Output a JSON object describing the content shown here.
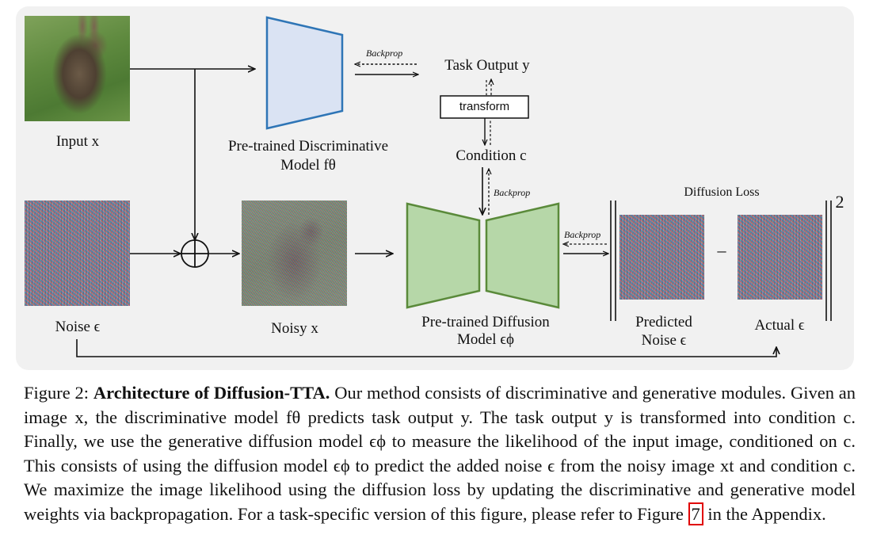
{
  "labels": {
    "input": "Input x",
    "noise": "Noise ϵ",
    "noisy": "Noisy x",
    "pretrained_disc_line1": "Pre-trained Discriminative",
    "pretrained_disc_line2": "Model fθ",
    "task_output": "Task Output y",
    "transform": "transform",
    "condition": "Condition c",
    "pretrained_diff_line1": "Pre-trained Diffusion",
    "pretrained_diff_line2": "Model ϵϕ",
    "diffusion_loss": "Diffusion Loss",
    "predicted_line1": "Predicted",
    "predicted_line2": "Noise ϵ",
    "actual": "Actual ϵ",
    "norm_exponent": "2",
    "minus": "–",
    "backprop_1": "Backprop",
    "backprop_2": "Backprop",
    "backprop_3": "Backprop"
  },
  "caption": {
    "figure_num": "Figure 2:",
    "title": "Architecture of Diffusion-TTA.",
    "body": " Our method consists of discriminative and generative modules. Given an image x, the discriminative model fθ predicts task output y. The task output y is transformed into condition c. Finally, we use the generative diffusion model ϵϕ to measure the likelihood of the input image, conditioned on c. This consists of using the diffusion model ϵϕ to predict the added noise ϵ from the noisy image xt and condition c. We maximize the image likelihood using the diffusion loss by updating the discriminative and generative model weights via backpropagation. For a task-specific version of this figure, please refer to Figure ",
    "ref": "7",
    "tail": " in the Appendix."
  },
  "colors": {
    "panel_bg": "#f1f1f1",
    "disc_fill": "#dae3f3",
    "disc_stroke": "#2e75b6",
    "diff_fill": "#b6d7a8",
    "diff_stroke": "#5a8a3a",
    "ref_box": "#e00000"
  }
}
